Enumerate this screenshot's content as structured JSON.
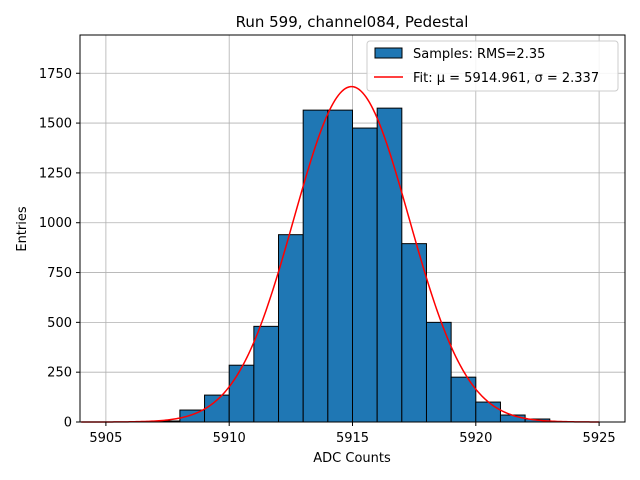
{
  "chart_data": {
    "type": "bar",
    "title": "Run 599, channel084, Pedestal",
    "xlabel": "ADC Counts",
    "ylabel": "Entries",
    "xlim": [
      5903.95,
      5926.05
    ],
    "ylim": [
      0,
      1942
    ],
    "xticks": [
      5905,
      5910,
      5915,
      5920,
      5925
    ],
    "yticks": [
      0,
      250,
      500,
      750,
      1000,
      1250,
      1500,
      1750
    ],
    "grid": true,
    "legend_position": "top-right",
    "histogram": {
      "name": "Samples: RMS=2.35",
      "color": "#1f77b4",
      "bin_edges": [
        5907,
        5908,
        5909,
        5910,
        5911,
        5912,
        5913,
        5914,
        5915,
        5916,
        5917,
        5918,
        5919,
        5920,
        5921,
        5922,
        5923
      ],
      "counts": [
        5,
        60,
        135,
        285,
        480,
        940,
        1565,
        1565,
        1475,
        1575,
        895,
        500,
        225,
        100,
        35,
        15
      ]
    },
    "fit": {
      "name": "Fit: μ = 5914.961, σ = 2.337",
      "color": "#ff0000",
      "mu": 5914.961,
      "sigma": 2.337,
      "amplitude": 1683,
      "x_range": [
        5904,
        5925
      ]
    }
  }
}
